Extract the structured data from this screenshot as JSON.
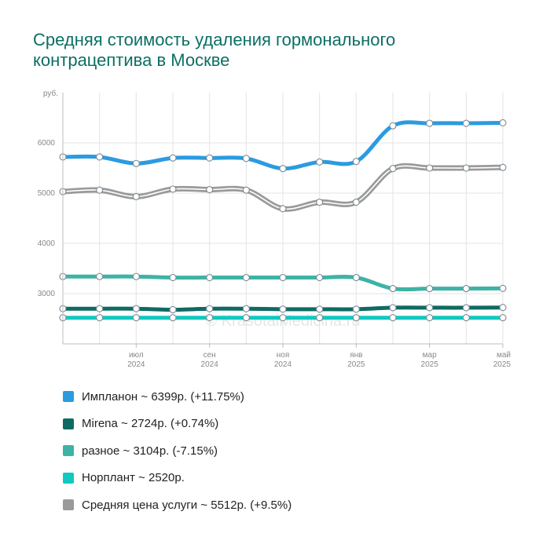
{
  "chart_data": {
    "type": "line",
    "title": "Средняя стоимость удаления гормонального контрацептива в Москве",
    "ylabel": "руб.",
    "ylim": [
      2000,
      7000
    ],
    "yticks": [
      3000,
      4000,
      5000,
      6000
    ],
    "x_months": [
      "2024-05",
      "2024-06",
      "2024-07",
      "2024-08",
      "2024-09",
      "2024-10",
      "2024-11",
      "2024-12",
      "2025-01",
      "2025-02",
      "2025-03",
      "2025-04",
      "2025-05"
    ],
    "xticks": [
      {
        "m": "июл",
        "y": "2024",
        "i": 2
      },
      {
        "m": "сен",
        "y": "2024",
        "i": 4
      },
      {
        "m": "ноя",
        "y": "2024",
        "i": 6
      },
      {
        "m": "янв",
        "y": "2025",
        "i": 8
      },
      {
        "m": "мар",
        "y": "2025",
        "i": 10
      },
      {
        "m": "май",
        "y": "2025",
        "i": 12
      }
    ],
    "grid": true,
    "legend_position": "bottom",
    "watermark": "© KrasotaiMedicina.ru",
    "series": [
      {
        "name": "Импланон",
        "color": "#2b9be0",
        "style": "solid",
        "values": [
          5720,
          5720,
          5590,
          5700,
          5700,
          5690,
          5490,
          5620,
          5630,
          6340,
          6390,
          6390,
          6399
        ],
        "legend": "Импланон ~ 6399р. (+11.75%)"
      },
      {
        "name": "Mirena",
        "color": "#0e6b63",
        "style": "solid",
        "values": [
          2700,
          2700,
          2700,
          2680,
          2700,
          2700,
          2690,
          2690,
          2690,
          2720,
          2720,
          2720,
          2724
        ],
        "legend": "Mirena ~ 2724р. (+0.74%)"
      },
      {
        "name": "разное",
        "color": "#3db3a6",
        "style": "solid",
        "values": [
          3340,
          3340,
          3340,
          3320,
          3320,
          3320,
          3320,
          3320,
          3320,
          3100,
          3100,
          3100,
          3104
        ],
        "legend": "разное ~ 3104р. (-7.15%)"
      },
      {
        "name": "Норплант",
        "color": "#11c8c0",
        "style": "solid",
        "values": [
          2520,
          2520,
          2520,
          2520,
          2520,
          2520,
          2520,
          2520,
          2520,
          2520,
          2520,
          2520,
          2520
        ],
        "legend": "Норплант ~ 2520р."
      },
      {
        "name": "Средняя цена услуги",
        "color": "#9a9a9a",
        "style": "double",
        "values": [
          5030,
          5060,
          4930,
          5080,
          5070,
          5060,
          4690,
          4820,
          4820,
          5490,
          5500,
          5500,
          5512
        ],
        "legend": "Средняя цена услуги ~ 5512р. (+9.5%)"
      }
    ]
  }
}
